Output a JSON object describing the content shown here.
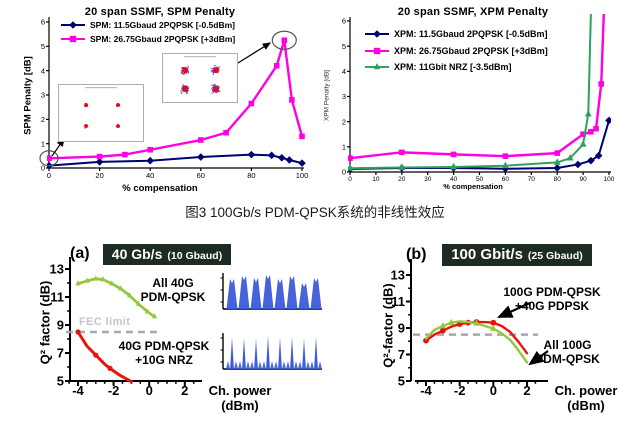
{
  "caption": "图3  100Gb/s PDM-QPSK系统的非线性效应",
  "styles": {
    "header_bg": "#1E2B20",
    "fec_color": "#A8A8A8",
    "wave_blue": "#3D5BD9",
    "constellation_red": "#DD1122",
    "constellation_blue": "#5544CC",
    "callout_gray": "#555555"
  },
  "chart_data": [
    {
      "type": "line",
      "title": "20 span SSMF, SPM Penalty",
      "xlabel": "% compensation",
      "ylabel": "SPM Penalty [dB]",
      "xlim": [
        0,
        100
      ],
      "ylim": [
        0,
        6
      ],
      "xticks": [
        0,
        20,
        40,
        60,
        80,
        100
      ],
      "yticks": [
        0,
        1,
        2,
        3,
        4,
        5,
        6
      ],
      "legend_position": "top-left",
      "grid": false,
      "series": [
        {
          "name": "SPM: 11.5Gbaud 2PQPSK [-0.5dBm]",
          "color": "#000072",
          "marker": "diamond",
          "x": [
            0,
            20,
            40,
            60,
            80,
            88,
            92,
            95,
            100
          ],
          "y": [
            0.1,
            0.25,
            0.3,
            0.45,
            0.55,
            0.52,
            0.42,
            0.33,
            0.2
          ]
        },
        {
          "name": "SPM: 26.75Gbaud 2PQPSK [+3dBm]",
          "color": "#FF00E1",
          "marker": "square",
          "x": [
            0,
            20,
            30,
            40,
            60,
            70,
            80,
            90,
            93,
            96,
            100
          ],
          "y": [
            0.4,
            0.47,
            0.55,
            0.75,
            1.15,
            1.45,
            2.65,
            4.2,
            5.25,
            2.8,
            1.3
          ]
        }
      ]
    },
    {
      "type": "line",
      "title": "20 span SSMF, XPM Penalty",
      "xlabel": "% compensation",
      "ylabel": "XPM Penalty [dB]",
      "xlim": [
        0,
        100
      ],
      "ylim": [
        0,
        6
      ],
      "xticks": [
        0,
        10,
        20,
        30,
        40,
        50,
        60,
        70,
        80,
        90,
        100
      ],
      "yticks": [
        0,
        1,
        2,
        3,
        4,
        5,
        6
      ],
      "legend_position": "top-left",
      "grid": false,
      "series": [
        {
          "name": "XPM: 11.5Gbaud 2PQPSK [-0.5dBm]",
          "color": "#000072",
          "marker": "diamond",
          "x": [
            0,
            20,
            40,
            60,
            80,
            88,
            93,
            96,
            100
          ],
          "y": [
            0.12,
            0.16,
            0.16,
            0.13,
            0.16,
            0.3,
            0.45,
            0.65,
            2.05
          ]
        },
        {
          "name": "XPM: 26.75Gbaud 2PQPSK [+3dBm]",
          "color": "#FF00E1",
          "marker": "square",
          "markevery": [
            0,
            1,
            2,
            3,
            4,
            5,
            6,
            7,
            8
          ],
          "x": [
            0,
            20,
            40,
            60,
            80,
            90,
            93,
            95,
            97,
            98
          ],
          "y": [
            0.55,
            0.78,
            0.7,
            0.63,
            0.75,
            1.5,
            1.6,
            1.72,
            3.5,
            6.3
          ]
        },
        {
          "name": "XPM: 11Gbit NRZ [-3.5dBm]",
          "color": "#2FA05F",
          "marker": "triangle",
          "markevery": [
            0,
            1,
            2,
            3,
            4,
            5,
            6,
            7
          ],
          "x": [
            0,
            20,
            40,
            60,
            80,
            85,
            90,
            92,
            93
          ],
          "y": [
            0.15,
            0.18,
            0.2,
            0.25,
            0.38,
            0.55,
            1.1,
            2.3,
            6.3
          ]
        }
      ]
    },
    {
      "type": "line",
      "panel_label": "(a)",
      "header_main": "40 Gb/s",
      "header_sub": "(10 Gbaud)",
      "xlabel_line1": "Ch. power",
      "xlabel_line2": "(dBm)",
      "ylabel": "Q² factor (dB)",
      "xlim": [
        -5,
        3
      ],
      "ylim": [
        5,
        13.6
      ],
      "xticks": [
        -4,
        -2,
        0,
        2
      ],
      "yticks": [
        13,
        11,
        9,
        7,
        5
      ],
      "fec_limit": 8.5,
      "annotations": {
        "fec_label": "FEC limit",
        "group1_line1": "All 40G",
        "group1_line2": "PDM-QPSK",
        "group2_line1": "40G PDM-QPSK",
        "group2_line2": "+10G NRZ"
      },
      "series": [
        {
          "name": "All 40G PDM-QPSK",
          "color": "#94C83C",
          "marker": "tick",
          "x": [
            -4,
            -3.5,
            -3,
            -2.6,
            -2.1,
            -1.6,
            -1.1,
            -0.6,
            -0.1,
            0.3
          ],
          "y": [
            11.95,
            12.15,
            12.3,
            12.25,
            11.95,
            11.6,
            11.1,
            10.5,
            9.95,
            9.6
          ]
        },
        {
          "name": "40G PDM-QPSK +10G NRZ",
          "color": "#E8140C",
          "marker": "circle",
          "markevery": [
            0,
            2,
            4
          ],
          "x": [
            -4,
            -3.5,
            -3,
            -2.5,
            -2.2,
            -1.7,
            -1.0
          ],
          "y": [
            8.5,
            7.5,
            6.85,
            6.2,
            5.9,
            5.45,
            4.95
          ]
        }
      ]
    },
    {
      "type": "line",
      "panel_label": "(b)",
      "header_main": "100 Gbit/s",
      "header_sub": "(25 Gbaud)",
      "xlabel_line1": "Ch. power",
      "xlabel_line2": "(dBm)",
      "ylabel": "Q²-factor (dB)",
      "xlim": [
        -5,
        3
      ],
      "ylim": [
        5,
        13.6
      ],
      "xticks": [
        -4,
        -2,
        0,
        2
      ],
      "yticks": [
        13,
        11,
        9,
        7,
        5
      ],
      "fec_limit": 8.5,
      "annotations": {
        "group1_line1": "100G PDM-QPSK",
        "group1_line2": "+40G PDPSK",
        "group2_line1": "All 100G",
        "group2_line2": "PDM-QPSK"
      },
      "series": [
        {
          "name": "100G PDM-QPSK +40G PDPSK",
          "color": "#E8140C",
          "marker": "circle",
          "markevery": [
            0,
            2,
            4,
            5,
            6,
            8
          ],
          "x": [
            -4,
            -3.5,
            -3,
            -2.5,
            -2,
            -1.5,
            -1,
            -0.5,
            0,
            0.5,
            1,
            1.5,
            2
          ],
          "y": [
            8.05,
            8.5,
            8.8,
            9.1,
            9.3,
            9.4,
            9.45,
            9.45,
            9.4,
            9.15,
            8.7,
            7.95,
            7.1
          ]
        },
        {
          "name": "All 100G PDM-QPSK",
          "color": "#94C83C",
          "marker": "triangle",
          "markevery": [
            2,
            3,
            6,
            8
          ],
          "x": [
            -4,
            -3.5,
            -3,
            -2.5,
            -2,
            -1.5,
            -1,
            -0.5,
            0,
            0.5,
            1,
            1.5,
            2
          ],
          "y": [
            8.2,
            8.85,
            9.15,
            9.4,
            9.5,
            9.45,
            9.35,
            9.15,
            8.95,
            8.6,
            8.1,
            7.3,
            6.4
          ]
        }
      ]
    }
  ]
}
